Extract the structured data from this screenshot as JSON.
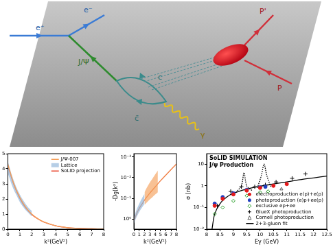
{
  "diagram": {
    "labels": [
      "e⁺",
      "e⁻",
      "J/Ψ",
      "c",
      "c̄",
      "γ",
      "P'",
      "P"
    ]
  },
  "chart_data": [
    {
      "type": "line",
      "x_label": "k²(GeV²)",
      "xlim": [
        0,
        8
      ],
      "xticks": [
        0,
        1,
        2,
        3,
        4,
        5,
        6,
        7,
        8
      ],
      "ylim": [
        0,
        5
      ],
      "yticks": [
        0,
        1,
        2,
        3,
        4,
        5
      ],
      "grid": false,
      "legend": "upper right",
      "series": [
        {
          "name": "J/Ψ-007",
          "color": "#f5a05a",
          "x": [
            0,
            0.5,
            1,
            1.5,
            2,
            2.5,
            3,
            4,
            5,
            6,
            7,
            8
          ],
          "values": [
            4.3,
            3.0,
            2.1,
            1.45,
            1.0,
            0.7,
            0.48,
            0.22,
            0.1,
            0.05,
            0.025,
            0.012
          ]
        },
        {
          "name": "Lattice",
          "color": "#8fb4d9",
          "x": [
            0,
            0.25,
            0.5,
            0.75,
            1,
            1.25,
            1.5,
            1.75,
            2
          ],
          "lower": [
            3.7,
            3.1,
            2.6,
            2.2,
            1.8,
            1.5,
            1.25,
            1.05,
            0.85
          ],
          "upper": [
            4.5,
            3.8,
            3.2,
            2.7,
            2.3,
            1.95,
            1.65,
            1.4,
            1.2
          ]
        },
        {
          "name": "SoLID projection",
          "color": "#e8452c",
          "x": [
            0,
            0.5,
            1,
            1.5,
            2,
            2.5,
            3,
            4,
            5,
            6,
            7,
            8
          ],
          "values": [
            4.2,
            2.95,
            2.05,
            1.4,
            0.97,
            0.68,
            0.47,
            0.22,
            0.1,
            0.05,
            0.025,
            0.012
          ]
        }
      ]
    },
    {
      "type": "line",
      "x_label": "k²(GeV²)",
      "y_label": "-Dg(k²)",
      "log": "y",
      "xlim": [
        0,
        8
      ],
      "xticks": [
        0,
        1,
        2,
        3,
        4,
        5,
        6,
        7,
        8
      ],
      "ylim": [
        3,
        0.0007
      ],
      "yticks": [
        {
          "value": 1,
          "label": "10⁰"
        },
        {
          "value": 0.1,
          "label": "10⁻¹"
        },
        {
          "value": 0.01,
          "label": "10⁻²"
        },
        {
          "value": 0.001,
          "label": "10⁻³"
        }
      ],
      "grid": false,
      "series": [
        {
          "color": "#8fb4d9",
          "x": [
            0,
            0.5,
            1,
            1.5,
            2
          ],
          "lower": [
            0.8,
            0.35,
            0.18,
            0.1,
            0.06
          ],
          "upper": [
            1.6,
            0.8,
            0.45,
            0.28,
            0.18
          ]
        },
        {
          "color": "#f5a05a",
          "x": [
            2,
            2.5,
            3,
            3.5,
            4,
            4.5
          ],
          "lower": [
            0.05,
            0.028,
            0.017,
            0.011,
            0.007,
            0.0045
          ],
          "upper": [
            0.2,
            0.15,
            0.11,
            0.085,
            0.065,
            0.05
          ]
        },
        {
          "color": "#f07b3f",
          "x": [
            0,
            0.5,
            1,
            1.5,
            2,
            3,
            4,
            5,
            6,
            7,
            8
          ],
          "values": [
            1.2,
            0.55,
            0.3,
            0.19,
            0.12,
            0.055,
            0.028,
            0.014,
            0.0075,
            0.004,
            0.0022
          ]
        }
      ]
    },
    {
      "type": "scatter",
      "annotations": [
        "SoLID SIMULATION",
        "J/ψ Production"
      ],
      "x_label": "Eγ (GeV)",
      "y_label": "σ (nb)",
      "log": "y",
      "xlim": [
        8,
        12.5
      ],
      "xticks": [
        8,
        8.5,
        9,
        9.5,
        10,
        10.5,
        11,
        11.5,
        12,
        12.5
      ],
      "ylim": [
        0.01,
        30
      ],
      "yticks": [
        {
          "value": 0.01,
          "label": "10⁻²"
        },
        {
          "value": 0.1,
          "label": "10⁻¹"
        },
        1,
        10
      ],
      "grid": false,
      "legend": "lower right",
      "series": [
        {
          "name": "electroproduction e(p)+e(p)",
          "color": "#e41a1c",
          "marker": "circle",
          "x": [
            8.3,
            8.6,
            9,
            9.5,
            10,
            10.5,
            11
          ],
          "values": [
            0.12,
            0.25,
            0.4,
            0.6,
            0.8,
            1.0,
            1.2
          ]
        },
        {
          "name": "photoproduction (e)p+ee(p)",
          "color": "#1f3fbf",
          "marker": "circle",
          "x": [
            8.3,
            8.6,
            9,
            9.5,
            10,
            10.2
          ],
          "values": [
            0.15,
            0.3,
            0.45,
            0.65,
            0.85,
            0.9
          ]
        },
        {
          "name": "exclusive ep+ee",
          "color": "#2ca02c",
          "marker": "diamond",
          "x": [
            8.3,
            8.6,
            9,
            9.5,
            10,
            10.3
          ],
          "values": [
            0.05,
            0.1,
            0.2,
            0.35,
            0.5,
            0.55
          ]
        },
        {
          "name": "GlueX photoproduction",
          "color": "#000000",
          "marker": "cross",
          "x": [
            8.4,
            8.9,
            9.3,
            9.8,
            10.2,
            10.6,
            11.2,
            11.7
          ],
          "values": [
            0.12,
            0.55,
            0.9,
            0.9,
            1.1,
            1.5,
            2.2,
            3.5
          ]
        },
        {
          "name": "Cornell photoproduction",
          "color": "#555555",
          "marker": "triangle",
          "x": [
            10.8
          ],
          "values": [
            0.7
          ]
        },
        {
          "name": "2+3-gluon fit",
          "color": "#000000",
          "type": "line",
          "x": [
            8.2,
            8.3,
            8.5,
            8.75,
            9,
            9.5,
            10,
            10.5,
            11,
            11.5,
            12,
            12.5
          ],
          "values": [
            0.01,
            0.05,
            0.15,
            0.3,
            0.45,
            0.7,
            0.95,
            1.2,
            1.5,
            1.9,
            2.3,
            2.8
          ]
        },
        {
          "color": "#000000",
          "type": "line",
          "line_style": "dotted",
          "x": [
            9.1,
            9.3,
            9.4,
            9.5,
            9.7
          ],
          "values": [
            0.5,
            1,
            4,
            1,
            0.6
          ]
        },
        {
          "color": "#000000",
          "type": "line",
          "line_style": "dotted",
          "x": [
            9.9,
            10.05,
            10.15,
            10.25,
            10.4
          ],
          "values": [
            0.8,
            3,
            10,
            3,
            0.9
          ]
        }
      ]
    }
  ]
}
